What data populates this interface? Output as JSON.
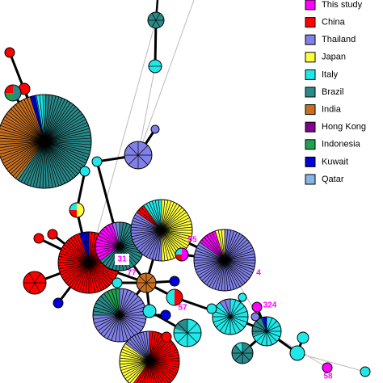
{
  "legend": [
    {
      "label": "This study",
      "color": "#ff00ff"
    },
    {
      "label": "China",
      "color": "#ff0000"
    },
    {
      "label": "Thailand",
      "color": "#8080e8"
    },
    {
      "label": "Japan",
      "color": "#ffff40"
    },
    {
      "label": "Italy",
      "color": "#20e8e8"
    },
    {
      "label": "Brazil",
      "color": "#2a8a8a"
    },
    {
      "label": "India",
      "color": "#c87020"
    },
    {
      "label": "Hong Kong",
      "color": "#800090"
    },
    {
      "label": "Indonesia",
      "color": "#20a050"
    },
    {
      "label": "Kuwait",
      "color": "#0000d8"
    },
    {
      "label": "Qatar",
      "color": "#88b4e8"
    }
  ],
  "node_labels": [
    "31",
    "77",
    "55",
    "4",
    "57",
    "324",
    "58"
  ]
}
